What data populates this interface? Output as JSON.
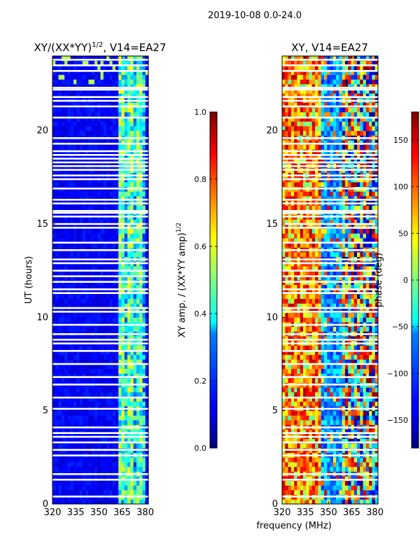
{
  "suptitle": "2019-10-08 0.0-24.0",
  "chart_data": [
    {
      "type": "heatmap",
      "title_main": "XY/(XX*YY)",
      "title_sup": "1/2",
      "title_tail": ", V14=EA27",
      "xlabel": "",
      "ylabel": "UT (hours)",
      "xlim": [
        320,
        382
      ],
      "ylim": [
        0,
        24
      ],
      "xticks": [
        320,
        335,
        350,
        365,
        380
      ],
      "yticks": [
        0,
        5,
        10,
        15,
        20
      ],
      "colorbar": {
        "label_main": "XY amp. / (XX*YY amp)",
        "label_sup": "1/2",
        "range": [
          0.0,
          1.0
        ],
        "ticks": [
          "0.0",
          "0.2",
          "0.4",
          "0.6",
          "0.8",
          "1.0"
        ],
        "colormap": "jet"
      },
      "description": "Mostly low normalized amplitude (~0.1) across 320-362 MHz; elevated 0.3-0.6 in 362-381 MHz band; horizontal gaps of flagged data"
    },
    {
      "type": "heatmap",
      "title_main": "XY, V14=EA27",
      "xlabel": "frequency (MHz)",
      "ylabel": "",
      "xlim": [
        320,
        382
      ],
      "ylim": [
        0,
        24
      ],
      "xticks": [
        320,
        335,
        350,
        365,
        380
      ],
      "yticks": [
        0,
        5,
        10,
        15,
        20
      ],
      "colorbar": {
        "label_main": "phase (deg)",
        "range": [
          -180,
          180
        ],
        "ticks": [
          "−150",
          "−100",
          "−50",
          "0",
          "50",
          "100",
          "150"
        ],
        "colormap": "jet"
      },
      "description": "XY phase with strong variation; red/orange near 320-345 MHz, blue/cyan near 345-358 MHz, mixed in 358-381 MHz"
    }
  ],
  "flag_gaps_hours": [
    0.4,
    1.3,
    1.6,
    2.6,
    2.9,
    3.3,
    3.6,
    3.8,
    4.1,
    5.1,
    5.7,
    6.4,
    6.8,
    7.5,
    8.2,
    8.6,
    8.8,
    9.1,
    9.6,
    10.3,
    10.5,
    11.3,
    11.5,
    11.9,
    12.2,
    12.5,
    12.9,
    13.1,
    13.6,
    14.0,
    14.8,
    15.0,
    15.4,
    15.6,
    15.7,
    16.1,
    16.3,
    16.9,
    17.4,
    17.6,
    17.9,
    18.1,
    18.3,
    18.5,
    18.7,
    18.9,
    19.3,
    19.6,
    20.7,
    21.3,
    21.6,
    21.8,
    22.2,
    22.3,
    23.2,
    23.5,
    23.8
  ]
}
